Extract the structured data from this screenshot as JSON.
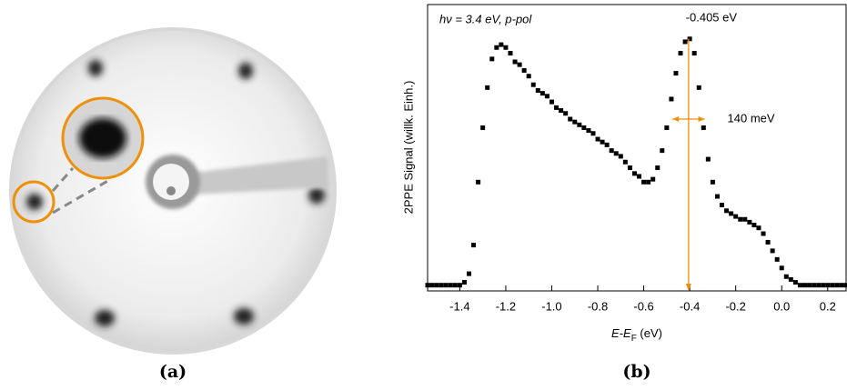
{
  "panel_a_label": "(a)",
  "chart_data": {
    "type": "scatter",
    "panel_label": "(b)",
    "annotation": "hν = 3.4 eV, p-pol",
    "x_label": [
      "E-E",
      "F",
      " (eV)"
    ],
    "y_label": "2PPE Signal (willk. Einh.)",
    "color": "#000000",
    "annotation_color": "#f0900a",
    "peak": {
      "value": -0.405,
      "label": "-0.405 eV"
    },
    "width": {
      "value": 0.14,
      "label": "140 meV"
    },
    "xlim": [
      -1.54,
      0.28
    ],
    "ylim": [
      0,
      1
    ],
    "xticks": [
      -1.4,
      -1.2,
      {
        "value": -1.0,
        "label": "-1.0"
      },
      -0.8,
      -0.6,
      -0.4,
      -0.2,
      {
        "value": 0,
        "label": "0.0"
      },
      0.2
    ],
    "x": [
      -1.54,
      -1.52,
      -1.5,
      -1.48,
      -1.46,
      -1.44,
      -1.42,
      -1.4,
      -1.38,
      -1.36,
      -1.34,
      -1.32,
      -1.3,
      -1.28,
      -1.26,
      -1.24,
      -1.22,
      -1.2,
      -1.18,
      -1.16,
      -1.14,
      -1.12,
      -1.1,
      -1.08,
      -1.06,
      -1.04,
      -1.02,
      -1.0,
      -0.98,
      -0.96,
      -0.94,
      -0.92,
      -0.9,
      -0.88,
      -0.86,
      -0.84,
      -0.82,
      -0.8,
      -0.78,
      -0.76,
      -0.74,
      -0.72,
      -0.7,
      -0.68,
      -0.66,
      -0.64,
      -0.62,
      -0.6,
      -0.58,
      -0.56,
      -0.54,
      -0.52,
      -0.5,
      -0.48,
      -0.46,
      -0.44,
      -0.42,
      -0.4,
      -0.38,
      -0.36,
      -0.34,
      -0.32,
      -0.3,
      -0.28,
      -0.26,
      -0.24,
      -0.22,
      -0.2,
      -0.18,
      -0.16,
      -0.14,
      -0.12,
      -0.1,
      -0.08,
      -0.06,
      -0.04,
      -0.02,
      0,
      0.02,
      0.04,
      0.06,
      0.08,
      0.1,
      0.12,
      0.14,
      0.16,
      0.18,
      0.2,
      0.22,
      0.24,
      0.26,
      0.28
    ],
    "values": [
      0.02,
      0.02,
      0.02,
      0.02,
      0.02,
      0.02,
      0.02,
      0.02,
      0.03,
      0.06,
      0.16,
      0.38,
      0.57,
      0.71,
      0.81,
      0.85,
      0.86,
      0.85,
      0.83,
      0.8,
      0.79,
      0.77,
      0.75,
      0.72,
      0.7,
      0.69,
      0.68,
      0.66,
      0.64,
      0.63,
      0.62,
      0.6,
      0.59,
      0.58,
      0.57,
      0.56,
      0.55,
      0.53,
      0.52,
      0.51,
      0.49,
      0.48,
      0.47,
      0.45,
      0.43,
      0.41,
      0.4,
      0.38,
      0.38,
      0.39,
      0.43,
      0.49,
      0.57,
      0.67,
      0.76,
      0.83,
      0.87,
      0.88,
      0.83,
      0.71,
      0.57,
      0.46,
      0.38,
      0.33,
      0.3,
      0.28,
      0.27,
      0.26,
      0.25,
      0.25,
      0.24,
      0.23,
      0.22,
      0.2,
      0.17,
      0.14,
      0.11,
      0.08,
      0.05,
      0.04,
      0.03,
      0.02,
      0.02,
      0.02,
      0.02,
      0.02,
      0.02,
      0.02,
      0.02,
      0.02,
      0.02,
      0.02
    ]
  }
}
